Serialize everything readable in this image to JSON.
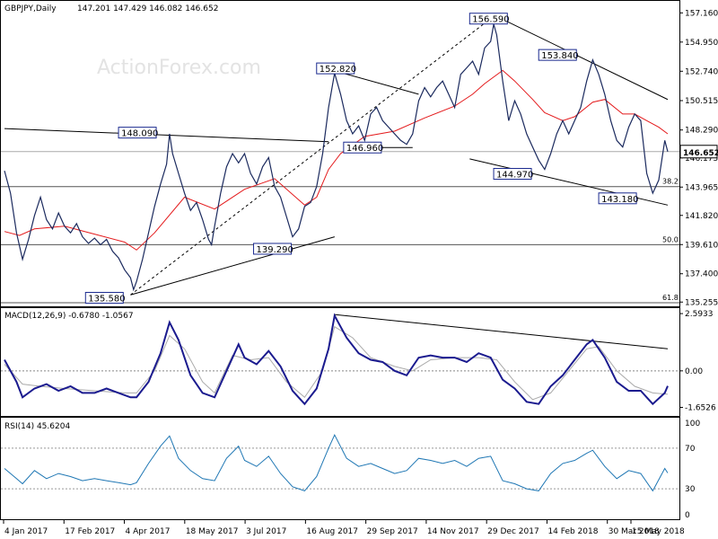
{
  "chart_data": [
    {
      "type": "line",
      "panel": "price",
      "symbol_title": "GBPJPY,Daily",
      "ohlc_text": "147.201 147.429 146.082 146.652",
      "watermark": "ActionForex.com",
      "ylim": [
        135.0,
        158.0
      ],
      "y_ticks": [
        {
          "label": "157.160",
          "value": 157.16
        },
        {
          "label": "154.950",
          "value": 154.95
        },
        {
          "label": "152.740",
          "value": 152.74
        },
        {
          "label": "150.515",
          "value": 150.515
        },
        {
          "label": "148.290",
          "value": 148.29
        },
        {
          "label": "146.175",
          "value": 146.175
        },
        {
          "label": "143.965",
          "value": 143.965
        },
        {
          "label": "141.820",
          "value": 141.82
        },
        {
          "label": "139.610",
          "value": 139.61
        },
        {
          "label": "137.400",
          "value": 137.4
        },
        {
          "label": "135.255",
          "value": 135.255
        }
      ],
      "last_price_label": "146.652",
      "last_price": 146.652,
      "x_labels": [
        "4 Jan 2017",
        "17 Feb 2017",
        "4 Apr 2017",
        "18 May 2017",
        "3 Jul 2017",
        "16 Aug 2017",
        "29 Sep 2017",
        "14 Nov 2017",
        "29 Dec 2017",
        "14 Feb 2018",
        "30 Mar 2018",
        "15 May 2018"
      ],
      "price_close_series": [
        [
          0,
          145.2
        ],
        [
          2,
          143.5
        ],
        [
          4,
          140.5
        ],
        [
          6,
          138.5
        ],
        [
          8,
          140.0
        ],
        [
          10,
          141.8
        ],
        [
          12,
          143.2
        ],
        [
          14,
          141.5
        ],
        [
          16,
          140.8
        ],
        [
          18,
          142.0
        ],
        [
          20,
          141.0
        ],
        [
          22,
          140.5
        ],
        [
          24,
          141.2
        ],
        [
          26,
          140.2
        ],
        [
          28,
          139.7
        ],
        [
          30,
          140.1
        ],
        [
          32,
          139.6
        ],
        [
          34,
          140.0
        ],
        [
          36,
          139.1
        ],
        [
          38,
          138.6
        ],
        [
          40,
          137.7
        ],
        [
          42,
          137.1
        ],
        [
          43,
          136.2
        ],
        [
          44,
          136.8
        ],
        [
          46,
          138.5
        ],
        [
          48,
          140.5
        ],
        [
          50,
          142.5
        ],
        [
          52,
          144.2
        ],
        [
          54,
          145.7
        ],
        [
          55,
          148.0
        ],
        [
          56,
          146.5
        ],
        [
          58,
          145.0
        ],
        [
          60,
          143.5
        ],
        [
          62,
          142.2
        ],
        [
          64,
          142.8
        ],
        [
          66,
          141.5
        ],
        [
          68,
          140.0
        ],
        [
          69,
          139.6
        ],
        [
          70,
          141.0
        ],
        [
          72,
          143.5
        ],
        [
          74,
          145.5
        ],
        [
          76,
          146.5
        ],
        [
          78,
          145.8
        ],
        [
          80,
          146.5
        ],
        [
          82,
          145.0
        ],
        [
          84,
          144.2
        ],
        [
          86,
          145.5
        ],
        [
          88,
          146.2
        ],
        [
          90,
          144.0
        ],
        [
          92,
          143.2
        ],
        [
          94,
          141.7
        ],
        [
          96,
          140.2
        ],
        [
          98,
          140.8
        ],
        [
          100,
          142.5
        ],
        [
          102,
          142.8
        ],
        [
          104,
          144.0
        ],
        [
          106,
          146.5
        ],
        [
          108,
          150.0
        ],
        [
          110,
          152.6
        ],
        [
          112,
          151.0
        ],
        [
          114,
          149.0
        ],
        [
          116,
          148.0
        ],
        [
          118,
          148.6
        ],
        [
          120,
          147.5
        ],
        [
          122,
          149.5
        ],
        [
          124,
          150.0
        ],
        [
          126,
          149.0
        ],
        [
          128,
          148.5
        ],
        [
          130,
          148.0
        ],
        [
          132,
          147.5
        ],
        [
          134,
          147.2
        ],
        [
          136,
          148.0
        ],
        [
          138,
          150.5
        ],
        [
          140,
          151.5
        ],
        [
          142,
          150.8
        ],
        [
          144,
          151.5
        ],
        [
          146,
          152.0
        ],
        [
          148,
          151.0
        ],
        [
          150,
          150.0
        ],
        [
          152,
          152.5
        ],
        [
          154,
          153.0
        ],
        [
          156,
          153.5
        ],
        [
          158,
          152.5
        ],
        [
          160,
          154.5
        ],
        [
          162,
          155.0
        ],
        [
          163,
          156.3
        ],
        [
          164,
          155.5
        ],
        [
          166,
          152.0
        ],
        [
          168,
          149.0
        ],
        [
          170,
          150.5
        ],
        [
          172,
          149.5
        ],
        [
          174,
          148.0
        ],
        [
          176,
          147.0
        ],
        [
          178,
          146.0
        ],
        [
          180,
          145.3
        ],
        [
          182,
          146.5
        ],
        [
          184,
          148.0
        ],
        [
          186,
          149.0
        ],
        [
          188,
          148.0
        ],
        [
          190,
          149.0
        ],
        [
          192,
          150.0
        ],
        [
          194,
          152.0
        ],
        [
          196,
          153.6
        ],
        [
          198,
          152.5
        ],
        [
          200,
          151.0
        ],
        [
          202,
          149.0
        ],
        [
          204,
          147.5
        ],
        [
          206,
          147.0
        ],
        [
          208,
          148.5
        ],
        [
          210,
          149.5
        ],
        [
          212,
          149.0
        ],
        [
          214,
          145.0
        ],
        [
          216,
          143.5
        ],
        [
          218,
          144.5
        ],
        [
          220,
          147.5
        ],
        [
          221,
          146.65
        ]
      ],
      "ma_series": [
        [
          0,
          140.6
        ],
        [
          5,
          140.3
        ],
        [
          10,
          140.8
        ],
        [
          20,
          141.0
        ],
        [
          30,
          140.4
        ],
        [
          40,
          139.8
        ],
        [
          44,
          139.2
        ],
        [
          50,
          140.5
        ],
        [
          60,
          143.2
        ],
        [
          70,
          142.3
        ],
        [
          80,
          143.8
        ],
        [
          90,
          144.6
        ],
        [
          100,
          142.6
        ],
        [
          104,
          143.2
        ],
        [
          108,
          145.3
        ],
        [
          112,
          146.5
        ],
        [
          120,
          147.8
        ],
        [
          130,
          148.2
        ],
        [
          140,
          149.2
        ],
        [
          150,
          150.1
        ],
        [
          156,
          151.0
        ],
        [
          160,
          151.8
        ],
        [
          166,
          152.8
        ],
        [
          170,
          152.0
        ],
        [
          176,
          150.6
        ],
        [
          180,
          149.6
        ],
        [
          186,
          149.0
        ],
        [
          190,
          149.3
        ],
        [
          196,
          150.4
        ],
        [
          200,
          150.6
        ],
        [
          206,
          149.5
        ],
        [
          210,
          149.5
        ],
        [
          214,
          149.0
        ],
        [
          218,
          148.5
        ],
        [
          221,
          148.0
        ]
      ],
      "annotations": [
        {
          "label": "156.590",
          "value": 156.59
        },
        {
          "label": "152.820",
          "value": 152.82
        },
        {
          "label": "153.840",
          "value": 153.84
        },
        {
          "label": "148.090",
          "value": 148.09
        },
        {
          "label": "146.960",
          "value": 146.96
        },
        {
          "label": "144.970",
          "value": 144.97
        },
        {
          "label": "143.180",
          "value": 143.18
        },
        {
          "label": "139.290",
          "value": 139.29
        },
        {
          "label": "135.580",
          "value": 135.58
        }
      ],
      "fib_levels": [
        {
          "label": "38.2",
          "value": 144.0
        },
        {
          "label": "50.0",
          "value": 139.6
        },
        {
          "label": "61.8",
          "value": 135.2
        }
      ],
      "reference_price": 146.652,
      "colors": {
        "price": "#1b2a5e",
        "ma": "#e41a1c",
        "trend": "#000000"
      }
    },
    {
      "type": "line",
      "panel": "macd",
      "title": "MACD(12,26,9) -0.6780 -1.0567",
      "ylim": [
        -2.0,
        2.8
      ],
      "y_ticks": [
        {
          "label": "2.5933",
          "value": 2.5933
        },
        {
          "label": "0.00",
          "value": 0.0
        },
        {
          "label": "-1.6526",
          "value": -1.6526
        }
      ],
      "macd_series": [
        [
          0,
          0.5
        ],
        [
          4,
          -0.5
        ],
        [
          6,
          -1.2
        ],
        [
          10,
          -0.8
        ],
        [
          14,
          -0.6
        ],
        [
          18,
          -0.9
        ],
        [
          22,
          -0.7
        ],
        [
          26,
          -1.0
        ],
        [
          30,
          -1.0
        ],
        [
          34,
          -0.8
        ],
        [
          38,
          -1.0
        ],
        [
          42,
          -1.2
        ],
        [
          44,
          -1.2
        ],
        [
          48,
          -0.5
        ],
        [
          52,
          0.8
        ],
        [
          55,
          2.2
        ],
        [
          58,
          1.4
        ],
        [
          62,
          -0.2
        ],
        [
          66,
          -1.0
        ],
        [
          70,
          -1.2
        ],
        [
          74,
          0.0
        ],
        [
          78,
          1.2
        ],
        [
          80,
          0.6
        ],
        [
          84,
          0.3
        ],
        [
          88,
          0.9
        ],
        [
          92,
          0.2
        ],
        [
          96,
          -0.9
        ],
        [
          100,
          -1.5
        ],
        [
          104,
          -0.8
        ],
        [
          108,
          1.0
        ],
        [
          110,
          2.5
        ],
        [
          114,
          1.5
        ],
        [
          118,
          0.8
        ],
        [
          122,
          0.5
        ],
        [
          126,
          0.4
        ],
        [
          130,
          0.0
        ],
        [
          134,
          -0.2
        ],
        [
          138,
          0.6
        ],
        [
          142,
          0.7
        ],
        [
          146,
          0.6
        ],
        [
          150,
          0.6
        ],
        [
          154,
          0.4
        ],
        [
          158,
          0.8
        ],
        [
          162,
          0.6
        ],
        [
          166,
          -0.4
        ],
        [
          170,
          -0.8
        ],
        [
          174,
          -1.4
        ],
        [
          178,
          -1.5
        ],
        [
          182,
          -0.7
        ],
        [
          186,
          -0.2
        ],
        [
          190,
          0.5
        ],
        [
          194,
          1.2
        ],
        [
          196,
          1.4
        ],
        [
          200,
          0.6
        ],
        [
          204,
          -0.5
        ],
        [
          208,
          -0.9
        ],
        [
          212,
          -0.9
        ],
        [
          216,
          -1.5
        ],
        [
          220,
          -1.0
        ],
        [
          221,
          -0.68
        ]
      ],
      "signal_series": [
        [
          0,
          0.3
        ],
        [
          6,
          -0.6
        ],
        [
          12,
          -0.7
        ],
        [
          20,
          -0.8
        ],
        [
          30,
          -0.9
        ],
        [
          40,
          -1.0
        ],
        [
          44,
          -1.0
        ],
        [
          50,
          0.0
        ],
        [
          55,
          1.6
        ],
        [
          60,
          1.0
        ],
        [
          66,
          -0.5
        ],
        [
          70,
          -1.0
        ],
        [
          76,
          0.7
        ],
        [
          82,
          0.5
        ],
        [
          88,
          0.6
        ],
        [
          94,
          -0.5
        ],
        [
          100,
          -1.2
        ],
        [
          106,
          0.0
        ],
        [
          110,
          2.0
        ],
        [
          116,
          1.5
        ],
        [
          122,
          0.6
        ],
        [
          130,
          0.2
        ],
        [
          136,
          0.0
        ],
        [
          142,
          0.5
        ],
        [
          150,
          0.6
        ],
        [
          158,
          0.6
        ],
        [
          164,
          0.5
        ],
        [
          170,
          -0.5
        ],
        [
          176,
          -1.3
        ],
        [
          182,
          -1.0
        ],
        [
          188,
          0.0
        ],
        [
          194,
          1.0
        ],
        [
          198,
          1.1
        ],
        [
          204,
          0.0
        ],
        [
          210,
          -0.7
        ],
        [
          216,
          -1.0
        ],
        [
          221,
          -1.06
        ]
      ],
      "colors": {
        "macd": "#1b1b8f",
        "signal": "#aaaaaa"
      }
    },
    {
      "type": "line",
      "panel": "rsi",
      "title": "RSI(14) 45.6204",
      "ylim": [
        0,
        100
      ],
      "y_ticks": [
        {
          "label": "100",
          "value": 100
        },
        {
          "label": "70",
          "value": 70
        },
        {
          "label": "30",
          "value": 30
        },
        {
          "label": "0",
          "value": 0
        }
      ],
      "rsi_series": [
        [
          0,
          50
        ],
        [
          4,
          40
        ],
        [
          6,
          35
        ],
        [
          10,
          48
        ],
        [
          14,
          40
        ],
        [
          18,
          45
        ],
        [
          22,
          42
        ],
        [
          26,
          38
        ],
        [
          30,
          40
        ],
        [
          34,
          38
        ],
        [
          38,
          36
        ],
        [
          42,
          34
        ],
        [
          44,
          36
        ],
        [
          48,
          55
        ],
        [
          52,
          72
        ],
        [
          55,
          82
        ],
        [
          58,
          60
        ],
        [
          62,
          48
        ],
        [
          66,
          40
        ],
        [
          70,
          38
        ],
        [
          74,
          60
        ],
        [
          78,
          72
        ],
        [
          80,
          58
        ],
        [
          84,
          52
        ],
        [
          88,
          62
        ],
        [
          92,
          45
        ],
        [
          96,
          32
        ],
        [
          100,
          28
        ],
        [
          104,
          42
        ],
        [
          108,
          70
        ],
        [
          110,
          83
        ],
        [
          114,
          60
        ],
        [
          118,
          52
        ],
        [
          122,
          55
        ],
        [
          126,
          50
        ],
        [
          130,
          45
        ],
        [
          134,
          48
        ],
        [
          138,
          60
        ],
        [
          142,
          58
        ],
        [
          146,
          55
        ],
        [
          150,
          58
        ],
        [
          154,
          52
        ],
        [
          158,
          60
        ],
        [
          162,
          62
        ],
        [
          166,
          38
        ],
        [
          170,
          35
        ],
        [
          174,
          30
        ],
        [
          178,
          28
        ],
        [
          182,
          45
        ],
        [
          186,
          55
        ],
        [
          190,
          58
        ],
        [
          194,
          65
        ],
        [
          196,
          68
        ],
        [
          200,
          52
        ],
        [
          204,
          40
        ],
        [
          208,
          48
        ],
        [
          212,
          45
        ],
        [
          216,
          28
        ],
        [
          220,
          50
        ],
        [
          221,
          45.6
        ]
      ],
      "colors": {
        "rsi": "#1f77b4"
      }
    }
  ]
}
